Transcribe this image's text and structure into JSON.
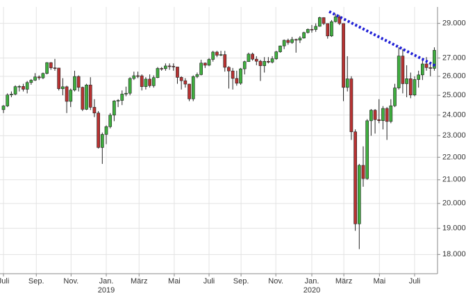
{
  "chart_data": {
    "type": "candlestick",
    "log_scale": true,
    "grid": true,
    "up_color": "#3fae3f",
    "down_color": "#b83232",
    "x": [
      0,
      1,
      2,
      3,
      4,
      5,
      6,
      7,
      8,
      9,
      10,
      11,
      12,
      13,
      14,
      15,
      16,
      17,
      18,
      19,
      20,
      21,
      22,
      23,
      24,
      25,
      26,
      27,
      28,
      29,
      30,
      31,
      32,
      33,
      34,
      35,
      36,
      37,
      38,
      39,
      40,
      41,
      42,
      43,
      44,
      45,
      46,
      47,
      48,
      49,
      50,
      51,
      52,
      53,
      54,
      55,
      56,
      57,
      58,
      59,
      60,
      61,
      62,
      63,
      64,
      65,
      66,
      67,
      68,
      69,
      70,
      71,
      72,
      73,
      74,
      75,
      76,
      77,
      78,
      79,
      80,
      81,
      82,
      83,
      84,
      85,
      86,
      87,
      88,
      89,
      90,
      91,
      92,
      93,
      94,
      95,
      96,
      97,
      98,
      99,
      100,
      101,
      102,
      103,
      104,
      105,
      106,
      107,
      108,
      109
    ],
    "open": [
      24270,
      24456,
      25019,
      25058,
      25451,
      25463,
      25313,
      25669,
      25790,
      25965,
      25916,
      26154,
      26743,
      26458,
      26447,
      25340,
      25444,
      24688,
      25270,
      25989,
      25413,
      24286,
      25538,
      24389,
      24101,
      22445,
      23062,
      23433,
      23996,
      24706,
      24737,
      25064,
      25106,
      25883,
      26031,
      26026,
      25450,
      25849,
      25502,
      25929,
      26425,
      26412,
      26560,
      26543,
      26505,
      25942,
      25764,
      25585,
      24815,
      25984,
      26090,
      26719,
      26600,
      26922,
      27332,
      27154,
      27192,
      26485,
      26287,
      25886,
      25628,
      26403,
      26797,
      27219,
      26935,
      26820,
      26573,
      26816,
      26770,
      26958,
      27347,
      27681,
      28005,
      27876,
      28051,
      28015,
      28135,
      28455,
      28645,
      28634,
      28824,
      29348,
      28990,
      28256,
      29102,
      29398,
      28992,
      25409,
      25864,
      23185,
      19174,
      21636,
      21052,
      23719,
      24242,
      23775,
      23724,
      24331,
      23685,
      24465,
      25383,
      27111,
      25605,
      25871,
      25016,
      25827,
      26075,
      26672,
      26469,
      26428
    ],
    "high": [
      24500,
      25100,
      25200,
      25520,
      25530,
      25600,
      25750,
      25850,
      26170,
      26050,
      26200,
      26770,
      26770,
      26950,
      26450,
      25900,
      25500,
      25350,
      26300,
      26050,
      25450,
      25600,
      25950,
      24800,
      24200,
      23150,
      23500,
      24100,
      24750,
      24800,
      25250,
      25450,
      25950,
      26250,
      26250,
      26100,
      25950,
      26100,
      26050,
      26500,
      26500,
      26700,
      26700,
      26700,
      26500,
      26000,
      25900,
      25600,
      26050,
      26200,
      26900,
      26750,
      27000,
      27400,
      27400,
      27400,
      27400,
      26550,
      26450,
      26300,
      26450,
      26850,
      27300,
      27300,
      27100,
      26900,
      27050,
      27050,
      27100,
      27400,
      27700,
      28050,
      28100,
      28200,
      28100,
      28250,
      28500,
      28700,
      28900,
      29000,
      29400,
      29370,
      29000,
      29200,
      29570,
      29500,
      29000,
      27100,
      26000,
      23300,
      21700,
      22500,
      23800,
      24300,
      24300,
      24800,
      24450,
      24400,
      24800,
      25600,
      27600,
      27500,
      26600,
      26200,
      26000,
      26300,
      27000,
      27050,
      26700,
      27600
    ],
    "low": [
      24100,
      24400,
      24900,
      25000,
      25200,
      25200,
      25100,
      25550,
      25750,
      25800,
      25850,
      26100,
      26350,
      26300,
      25250,
      25000,
      24100,
      24400,
      25200,
      25200,
      24200,
      24250,
      24250,
      23900,
      22400,
      21700,
      22600,
      23350,
      23700,
      24400,
      24500,
      24950,
      25000,
      25800,
      25900,
      25250,
      25300,
      25400,
      25400,
      25900,
      26300,
      26300,
      26350,
      26300,
      25600,
      25300,
      25400,
      24700,
      24700,
      25900,
      26050,
      26450,
      26550,
      26800,
      27050,
      27100,
      26250,
      25350,
      25300,
      25500,
      25550,
      26100,
      26800,
      26850,
      26600,
      25750,
      26200,
      26700,
      26700,
      26900,
      27300,
      27500,
      27750,
      27800,
      27300,
      27850,
      28100,
      28400,
      28450,
      28500,
      28800,
      28900,
      28100,
      28200,
      29050,
      28900,
      24700,
      25200,
      22800,
      18900,
      18200,
      20700,
      21000,
      23000,
      23100,
      23600,
      23300,
      22800,
      23600,
      24400,
      25300,
      25100,
      24900,
      24850,
      24950,
      25400,
      25800,
      26300,
      26000,
      26300
    ],
    "close": [
      24456,
      25019,
      25058,
      25451,
      25463,
      25313,
      25669,
      25790,
      25965,
      25916,
      26154,
      26743,
      26458,
      26447,
      25340,
      25444,
      24688,
      25270,
      25989,
      25413,
      24286,
      25538,
      24389,
      24101,
      22445,
      23062,
      23433,
      23996,
      24706,
      24737,
      25064,
      25106,
      25883,
      26031,
      26026,
      25450,
      25849,
      25502,
      25929,
      26425,
      26412,
      26560,
      26543,
      26505,
      25942,
      25764,
      25585,
      24815,
      25984,
      26090,
      26719,
      26600,
      26922,
      27332,
      27154,
      27192,
      26485,
      26287,
      25886,
      25628,
      26403,
      26797,
      27219,
      26935,
      26820,
      26573,
      26816,
      26770,
      26958,
      27347,
      27681,
      28005,
      27876,
      28051,
      28015,
      28135,
      28455,
      28645,
      28634,
      28824,
      29348,
      28990,
      28256,
      29102,
      29398,
      28992,
      25409,
      25864,
      23185,
      19174,
      21636,
      21052,
      23719,
      24242,
      23775,
      23724,
      24331,
      23685,
      24465,
      25383,
      27111,
      25605,
      25871,
      25016,
      25827,
      26075,
      26672,
      26469,
      26428,
      27433
    ],
    "xlim": [
      -0.88,
      109.8
    ],
    "ylim": [
      17300,
      30000
    ],
    "xticks": [
      {
        "value": 0,
        "label": "Juli"
      },
      {
        "value": 8.3,
        "label": "Sep."
      },
      {
        "value": 17.1,
        "label": "Nov."
      },
      {
        "value": 26.0,
        "label": "Jan."
      },
      {
        "value": 34.3,
        "label": "März"
      },
      {
        "value": 43.2,
        "label": "Mai"
      },
      {
        "value": 52.0,
        "label": "Juli"
      },
      {
        "value": 60.1,
        "label": "Sep."
      },
      {
        "value": 68.9,
        "label": "Nov."
      },
      {
        "value": 78.0,
        "label": "Jan."
      },
      {
        "value": 86.1,
        "label": "März"
      },
      {
        "value": 95.1,
        "label": "Mai"
      },
      {
        "value": 104.0,
        "label": "Juli"
      }
    ],
    "year_labels": [
      {
        "value": 26.0,
        "label": "2019"
      },
      {
        "value": 78.0,
        "label": "2020"
      }
    ],
    "yticks": [
      {
        "value": 18000,
        "label": "18.000"
      },
      {
        "value": 19000,
        "label": "19.000"
      },
      {
        "value": 20000,
        "label": "20.000"
      },
      {
        "value": 21000,
        "label": "21.000"
      },
      {
        "value": 22000,
        "label": "22.000"
      },
      {
        "value": 23000,
        "label": "23.000"
      },
      {
        "value": 24000,
        "label": "24.000"
      },
      {
        "value": 25000,
        "label": "25.000"
      },
      {
        "value": 26000,
        "label": "26.000"
      },
      {
        "value": 27000,
        "label": "27.000"
      },
      {
        "value": 29000,
        "label": "29.000"
      }
    ],
    "trendline": {
      "x": [
        82.4,
        109.3
      ],
      "y": [
        29717,
        26566
      ],
      "color": "#1f1fd6"
    }
  }
}
